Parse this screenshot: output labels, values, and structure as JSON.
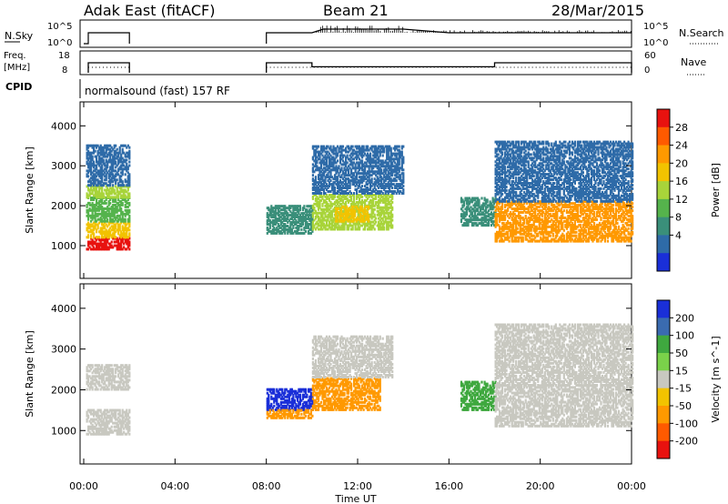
{
  "header": {
    "station": "Adak East (fitACF)",
    "beam": "Beam 21",
    "date": "28/Mar/2015"
  },
  "strip_labels": {
    "nsky": "N.Sky",
    "nsearch": "N.Search",
    "freq_top": "Freq.",
    "freq_unit": "[MHz]",
    "nave": "Nave",
    "cpid": "CPID",
    "cpid_value": "normalsound (fast) 157 RF",
    "tick_1e5": "10^5",
    "tick_1e0": "10^0",
    "freq_ticks": [
      "18",
      "8"
    ],
    "nave_ticks": [
      "60",
      "0"
    ]
  },
  "chart_data": [
    {
      "type": "line",
      "name": "noise",
      "x_unit": "hours UT",
      "xlim": [
        0,
        24
      ],
      "y_scale": "log",
      "segments": [
        {
          "x": [
            0,
            0.2,
            0.2,
            2,
            2
          ],
          "y_level": [
            "low",
            "low",
            "high",
            "high",
            "low"
          ]
        },
        {
          "x": [
            8,
            8,
            10,
            10.5,
            12,
            14,
            16,
            18,
            20,
            24
          ],
          "y_level": [
            "low",
            "high",
            "high",
            "high-noisy",
            "high-noisy",
            "high-noisy",
            "high",
            "high",
            "high",
            "high"
          ]
        }
      ]
    },
    {
      "type": "line",
      "name": "frequency",
      "ylim": [
        8,
        18
      ],
      "segments": [
        {
          "x": [
            0.2,
            2
          ],
          "y": [
            13,
            13
          ]
        },
        {
          "x": [
            8,
            10,
            10,
            18,
            18,
            24
          ],
          "y": [
            13,
            13,
            11,
            11,
            13,
            13
          ]
        }
      ],
      "nave_dotted": [
        {
          "x": [
            0.2,
            2
          ],
          "y": [
            11,
            11
          ]
        },
        {
          "x": [
            8,
            24
          ],
          "y": [
            11,
            11
          ]
        }
      ]
    },
    {
      "type": "heatmap",
      "title": "Power",
      "xlabel": "",
      "ylabel": "Slant Range [km]",
      "x_ticks": [
        "00:00",
        "04:00",
        "08:00",
        "12:00",
        "16:00",
        "20:00",
        "00:00"
      ],
      "xlim": [
        0,
        24
      ],
      "ylim": [
        180,
        4600
      ],
      "y_ticks": [
        1000,
        2000,
        3000,
        4000
      ],
      "colorbar": {
        "label": "Power [dB]",
        "ticks": [
          "28",
          "24",
          "20",
          "16",
          "12",
          "8",
          "4"
        ],
        "colors": [
          "#e8120f",
          "#ff5a00",
          "#ff9900",
          "#f2c300",
          "#a8d43a",
          "#55b34c",
          "#3a8f7a",
          "#2e6ba8",
          "#1a2fd8"
        ]
      },
      "regions": [
        {
          "x0": 0.1,
          "x1": 2.0,
          "y0": 900,
          "y1": 1200,
          "level": 0
        },
        {
          "x0": 0.1,
          "x1": 2.0,
          "y0": 1200,
          "y1": 1600,
          "level": 3
        },
        {
          "x0": 0.1,
          "x1": 2.0,
          "y0": 1600,
          "y1": 2200,
          "level": 5
        },
        {
          "x0": 0.1,
          "x1": 2.0,
          "y0": 2200,
          "y1": 2500,
          "level": 4
        },
        {
          "x0": 0.1,
          "x1": 2.0,
          "y0": 2500,
          "y1": 3500,
          "level": 7
        },
        {
          "x0": 8.0,
          "x1": 10.0,
          "y0": 1300,
          "y1": 2000,
          "level": 6
        },
        {
          "x0": 10.0,
          "x1": 13.5,
          "y0": 1400,
          "y1": 2300,
          "level": 4
        },
        {
          "x0": 11.0,
          "x1": 12.5,
          "y0": 1600,
          "y1": 2000,
          "level": 3
        },
        {
          "x0": 10.0,
          "x1": 14.0,
          "y0": 2300,
          "y1": 3500,
          "level": 7
        },
        {
          "x0": 16.5,
          "x1": 18.0,
          "y0": 1500,
          "y1": 2200,
          "level": 6
        },
        {
          "x0": 18.0,
          "x1": 24.0,
          "y0": 1100,
          "y1": 2100,
          "level": 2
        },
        {
          "x0": 18.0,
          "x1": 24.0,
          "y0": 2100,
          "y1": 3600,
          "level": 7
        }
      ]
    },
    {
      "type": "heatmap",
      "title": "Velocity",
      "xlabel": "Time UT",
      "ylabel": "Slant Range [km]",
      "x_ticks": [
        "00:00",
        "04:00",
        "08:00",
        "12:00",
        "16:00",
        "20:00",
        "00:00"
      ],
      "xlim": [
        0,
        24
      ],
      "ylim": [
        180,
        4600
      ],
      "y_ticks": [
        1000,
        2000,
        3000,
        4000
      ],
      "colorbar": {
        "label": "Velocity [m s^-1]",
        "ticks": [
          "200",
          "100",
          "50",
          "15",
          "-15",
          "-50",
          "-100",
          "-200"
        ],
        "colors": [
          "#1a2fd8",
          "#3a6bb0",
          "#3fa83f",
          "#7ad24a",
          "#c8c8c0",
          "#f2c300",
          "#ff9900",
          "#ff5a00",
          "#e8120f"
        ]
      },
      "regions": [
        {
          "x0": 0.1,
          "x1": 2.0,
          "y0": 900,
          "y1": 1500,
          "level": 4
        },
        {
          "x0": 0.1,
          "x1": 2.0,
          "y0": 2000,
          "y1": 2600,
          "level": 4
        },
        {
          "x0": 8.0,
          "x1": 10.0,
          "y0": 1500,
          "y1": 2000,
          "level": 0
        },
        {
          "x0": 8.0,
          "x1": 10.0,
          "y0": 1300,
          "y1": 1500,
          "level": 6
        },
        {
          "x0": 10.0,
          "x1": 13.0,
          "y0": 1500,
          "y1": 2300,
          "level": 6
        },
        {
          "x0": 10.0,
          "x1": 13.5,
          "y0": 2300,
          "y1": 3300,
          "level": 4
        },
        {
          "x0": 16.5,
          "x1": 18.0,
          "y0": 1500,
          "y1": 2200,
          "level": 2
        },
        {
          "x0": 18.0,
          "x1": 24.0,
          "y0": 1100,
          "y1": 2100,
          "level": 4
        },
        {
          "x0": 18.0,
          "x1": 24.0,
          "y0": 2100,
          "y1": 3600,
          "level": 4
        }
      ]
    }
  ]
}
